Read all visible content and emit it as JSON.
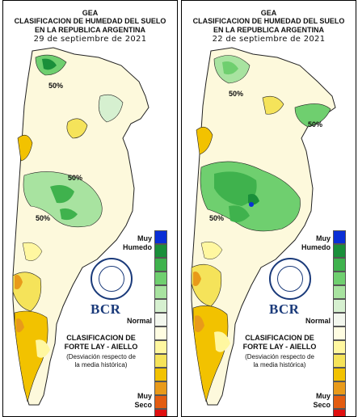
{
  "panels": [
    {
      "org": "GEA",
      "title": "CLASIFICACION DE HUMEDAD DEL SUELO",
      "subtitle": "EN LA REPUBLICA ARGENTINA",
      "date": "29 de septiembre de 2021",
      "isolines": [
        "50%",
        "50%",
        "50%"
      ]
    },
    {
      "org": "GEA",
      "title": "CLASIFICACION DE HUMEDAD DEL SUELO",
      "subtitle": "EN LA REPUBLICA ARGENTINA",
      "date": "22 de septiembre de 2021",
      "isolines": [
        "50%",
        "50%",
        "50%"
      ]
    }
  ],
  "legend": {
    "muy": "Muy",
    "humedo": "Humedo",
    "normal": "Normal",
    "seco": "Seco",
    "brand": "BCR",
    "method_line1": "CLASIFICACION DE",
    "method_line2": "FORTE LAY - AIELLO",
    "desc_line1": "(Desviación respecto de",
    "desc_line2": "la media histórica)",
    "colors": [
      "#0a2fd6",
      "#1a8f3a",
      "#3fb24d",
      "#6fcf6f",
      "#a8e3a0",
      "#d6f0d0",
      "#f3f7ee",
      "#fffde2",
      "#fff7a0",
      "#f5e35a",
      "#f2c200",
      "#e89a1a",
      "#e35c10",
      "#e01010"
    ]
  },
  "colors": {
    "ocean": "#ffffff",
    "land_base": "#fdf9dc",
    "border": "#222222"
  }
}
